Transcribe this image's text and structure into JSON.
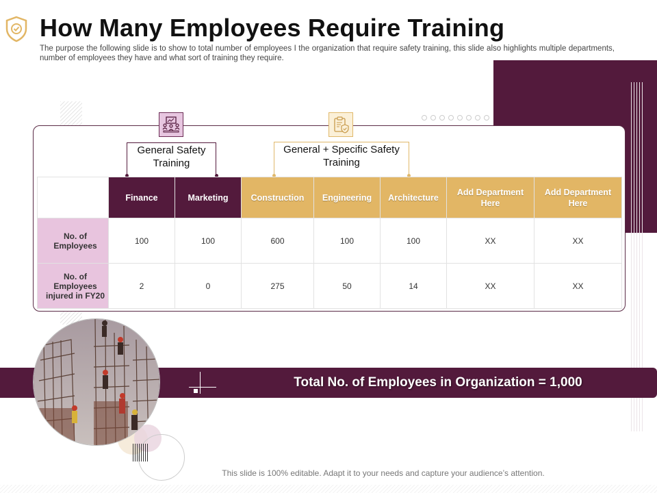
{
  "slide": {
    "title": "How Many Employees Require Training",
    "description": "The purpose the following slide is to show to total number of employees I the organization that require safety training, this slide also highlights multiple departments, number of employees they have and what sort of training they require.",
    "footer": "This slide is 100% editable. Adapt it to your needs and capture your audience’s attention."
  },
  "groups": {
    "general": "General Safety Training",
    "general_specific": "General + Specific Safety Training"
  },
  "table": {
    "columns": [
      "Finance",
      "Marketing",
      "Construction",
      "Engineering",
      "Architecture",
      "Add Department Here",
      "Add Department Here"
    ],
    "rows": [
      {
        "label": "No. of Employees",
        "values": [
          "100",
          "100",
          "600",
          "100",
          "100",
          "XX",
          "XX"
        ]
      },
      {
        "label": "No. of Employees injured in FY20",
        "values": [
          "2",
          "0",
          "275",
          "50",
          "14",
          "XX",
          "XX"
        ]
      }
    ]
  },
  "banner": {
    "text": "Total No. of Employees  in Organization = 1,000"
  },
  "colors": {
    "maroon": "#531a3c",
    "gold": "#e2b665",
    "pink": "#e8c4de"
  },
  "icons": {
    "header": "shield-icon",
    "general": "people-training-icon",
    "general_specific": "clipboard-shield-icon"
  }
}
